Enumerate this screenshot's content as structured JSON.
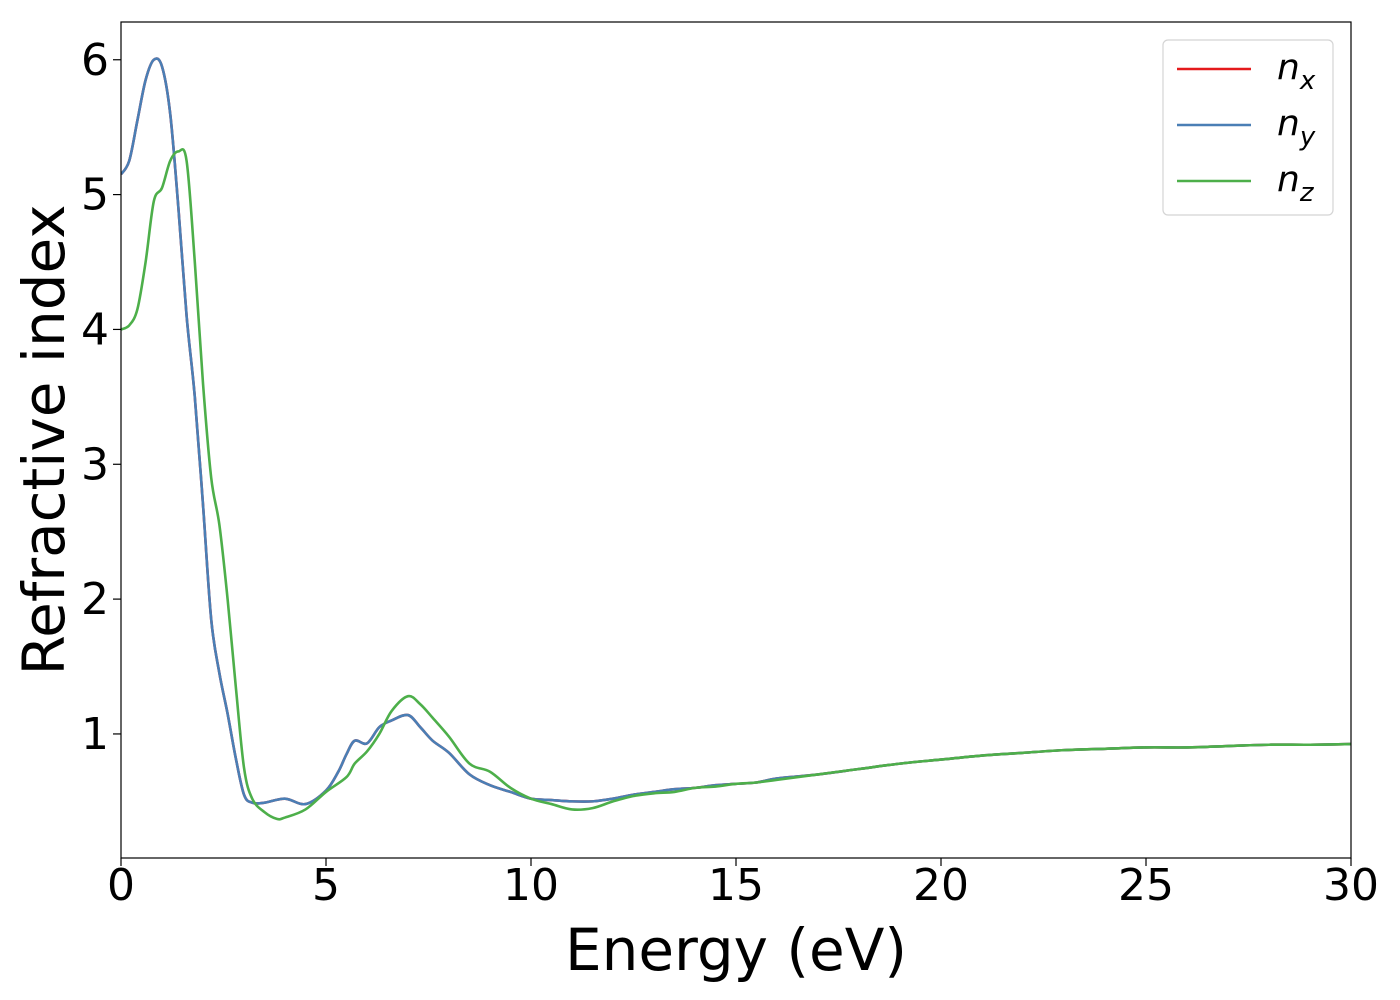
{
  "chart_data": {
    "type": "line",
    "title": "",
    "xlabel": "Energy (eV)",
    "ylabel": "Refractive index",
    "xlim": [
      0,
      30
    ],
    "ylim": [
      0.08,
      6.28
    ],
    "xticks": [
      0,
      5,
      10,
      15,
      20,
      25,
      30
    ],
    "xtick_labels": [
      "0",
      "5",
      "10",
      "15",
      "20",
      "25",
      "30"
    ],
    "yticks": [
      1,
      2,
      3,
      4,
      5,
      6
    ],
    "ytick_labels": [
      "1",
      "2",
      "3",
      "4",
      "5",
      "6"
    ],
    "grid": false,
    "legend_position": "top-right",
    "series": [
      {
        "name": "n",
        "sub": "x",
        "color": "#e41a1c",
        "x": [
          0,
          0.2,
          0.4,
          0.6,
          0.8,
          1.0,
          1.2,
          1.4,
          1.6,
          1.8,
          2.0,
          2.2,
          2.4,
          2.6,
          2.8,
          3.0,
          3.2,
          3.5,
          4.0,
          4.5,
          5.0,
          5.3,
          5.5,
          5.7,
          6.0,
          6.3,
          6.6,
          7.0,
          7.3,
          7.6,
          8.0,
          8.5,
          9.0,
          9.5,
          10.0,
          10.5,
          11.0,
          11.5,
          12.0,
          12.5,
          13.0,
          13.5,
          14.0,
          14.5,
          15.0,
          15.5,
          16.0,
          17.0,
          18.0,
          19.0,
          20.0,
          21.0,
          22.0,
          23.0,
          24.0,
          25.0,
          26.0,
          27.0,
          28.0,
          29.0,
          30.0
        ],
        "y": [
          5.15,
          5.25,
          5.55,
          5.85,
          6.0,
          5.95,
          5.6,
          4.9,
          4.1,
          3.5,
          2.7,
          1.85,
          1.45,
          1.15,
          0.82,
          0.55,
          0.49,
          0.49,
          0.52,
          0.48,
          0.58,
          0.72,
          0.85,
          0.95,
          0.93,
          1.05,
          1.1,
          1.14,
          1.05,
          0.95,
          0.86,
          0.7,
          0.62,
          0.57,
          0.52,
          0.51,
          0.5,
          0.5,
          0.52,
          0.55,
          0.57,
          0.59,
          0.6,
          0.62,
          0.63,
          0.64,
          0.67,
          0.7,
          0.74,
          0.78,
          0.81,
          0.84,
          0.86,
          0.88,
          0.89,
          0.9,
          0.9,
          0.91,
          0.92,
          0.92,
          0.925
        ]
      },
      {
        "name": "n",
        "sub": "y",
        "color": "#4a7fb5",
        "x": [
          0,
          0.2,
          0.4,
          0.6,
          0.8,
          1.0,
          1.2,
          1.4,
          1.6,
          1.8,
          2.0,
          2.2,
          2.4,
          2.6,
          2.8,
          3.0,
          3.2,
          3.5,
          4.0,
          4.5,
          5.0,
          5.3,
          5.5,
          5.7,
          6.0,
          6.3,
          6.6,
          7.0,
          7.3,
          7.6,
          8.0,
          8.5,
          9.0,
          9.5,
          10.0,
          10.5,
          11.0,
          11.5,
          12.0,
          12.5,
          13.0,
          13.5,
          14.0,
          14.5,
          15.0,
          15.5,
          16.0,
          17.0,
          18.0,
          19.0,
          20.0,
          21.0,
          22.0,
          23.0,
          24.0,
          25.0,
          26.0,
          27.0,
          28.0,
          29.0,
          30.0
        ],
        "y": [
          5.15,
          5.25,
          5.55,
          5.85,
          6.0,
          5.95,
          5.6,
          4.9,
          4.1,
          3.5,
          2.7,
          1.85,
          1.45,
          1.15,
          0.82,
          0.55,
          0.49,
          0.49,
          0.52,
          0.48,
          0.58,
          0.72,
          0.85,
          0.95,
          0.93,
          1.05,
          1.1,
          1.14,
          1.05,
          0.95,
          0.86,
          0.7,
          0.62,
          0.57,
          0.52,
          0.51,
          0.5,
          0.5,
          0.52,
          0.55,
          0.57,
          0.59,
          0.6,
          0.62,
          0.63,
          0.64,
          0.67,
          0.7,
          0.74,
          0.78,
          0.81,
          0.84,
          0.86,
          0.88,
          0.89,
          0.9,
          0.9,
          0.91,
          0.92,
          0.92,
          0.925
        ]
      },
      {
        "name": "n",
        "sub": "z",
        "color": "#4daf4a",
        "x": [
          0,
          0.2,
          0.4,
          0.6,
          0.8,
          1.0,
          1.2,
          1.4,
          1.6,
          1.8,
          2.0,
          2.2,
          2.4,
          2.6,
          2.8,
          3.0,
          3.2,
          3.5,
          3.8,
          4.0,
          4.5,
          5.0,
          5.5,
          5.7,
          6.0,
          6.3,
          6.6,
          7.0,
          7.3,
          7.6,
          8.0,
          8.5,
          9.0,
          9.5,
          10.0,
          10.5,
          11.0,
          11.5,
          12.0,
          12.5,
          13.0,
          13.5,
          14.0,
          14.5,
          15.0,
          15.5,
          16.0,
          17.0,
          18.0,
          19.0,
          20.0,
          21.0,
          22.0,
          23.0,
          24.0,
          25.0,
          26.0,
          27.0,
          28.0,
          29.0,
          30.0
        ],
        "y": [
          4.0,
          4.03,
          4.15,
          4.5,
          4.95,
          5.05,
          5.25,
          5.32,
          5.25,
          4.5,
          3.6,
          2.9,
          2.55,
          2.0,
          1.35,
          0.75,
          0.52,
          0.42,
          0.37,
          0.38,
          0.44,
          0.57,
          0.68,
          0.78,
          0.87,
          1.0,
          1.17,
          1.28,
          1.22,
          1.12,
          0.98,
          0.78,
          0.72,
          0.6,
          0.52,
          0.48,
          0.44,
          0.45,
          0.5,
          0.54,
          0.56,
          0.57,
          0.6,
          0.61,
          0.63,
          0.64,
          0.66,
          0.7,
          0.74,
          0.78,
          0.81,
          0.84,
          0.86,
          0.88,
          0.89,
          0.9,
          0.9,
          0.91,
          0.92,
          0.92,
          0.925
        ]
      }
    ]
  }
}
